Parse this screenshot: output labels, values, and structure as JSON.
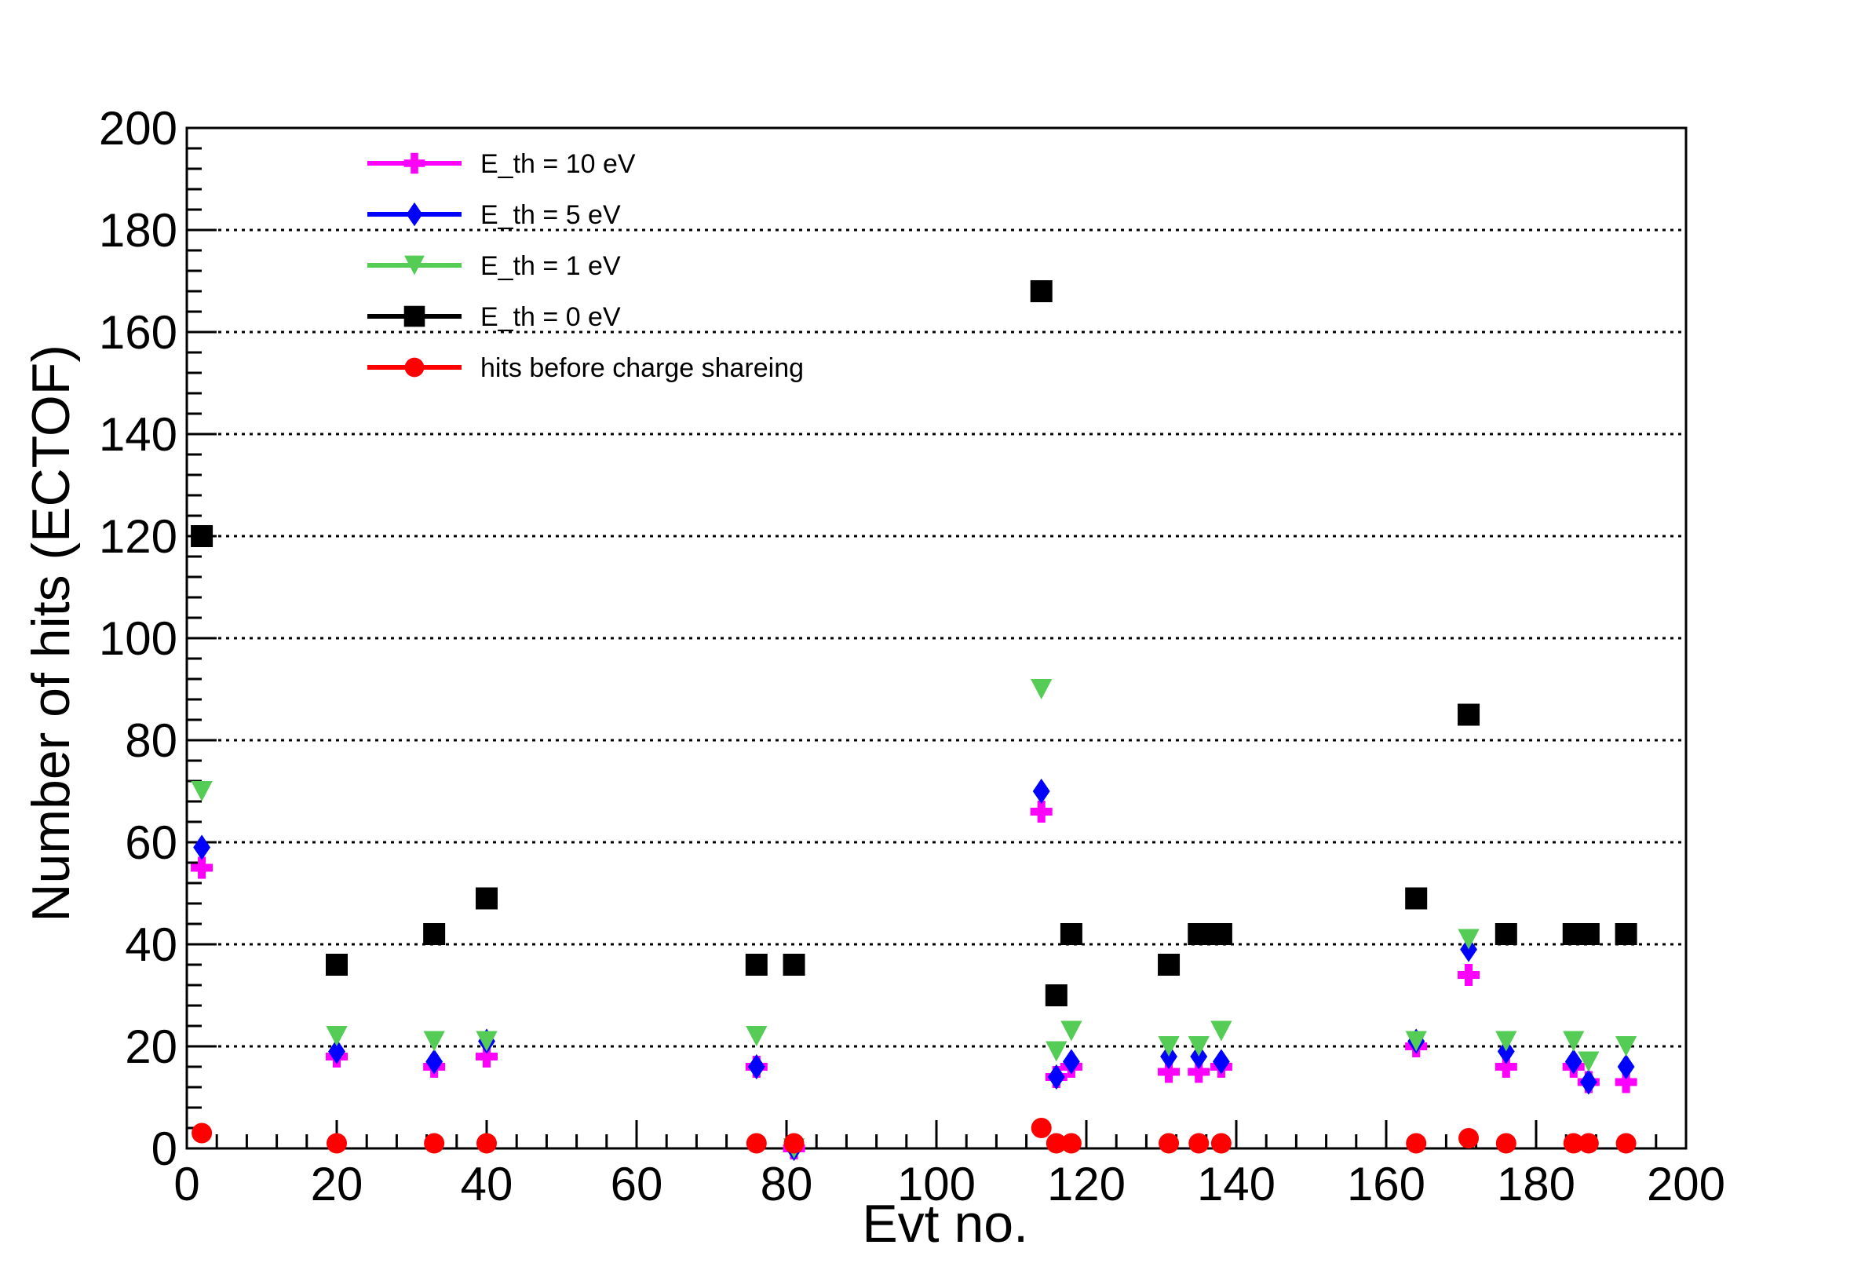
{
  "chart_data": {
    "type": "scatter",
    "title": "",
    "xlabel": "Evt no.",
    "ylabel": "Number of hits (ECTOF)",
    "xlim": [
      0,
      200
    ],
    "ylim": [
      0,
      200
    ],
    "xticks": [
      0,
      20,
      40,
      60,
      80,
      100,
      120,
      140,
      160,
      180,
      200
    ],
    "yticks": [
      0,
      20,
      40,
      60,
      80,
      100,
      120,
      140,
      160,
      180,
      200
    ],
    "ygrid": [
      20,
      40,
      60,
      80,
      100,
      120,
      140,
      160,
      180
    ],
    "grid": "horizontal dotted",
    "legend_position": "top-left",
    "series": [
      {
        "name": "E_th = 10 eV",
        "color": "#ff00ff",
        "marker": "cross",
        "points": [
          [
            2,
            55
          ],
          [
            20,
            18
          ],
          [
            33,
            16
          ],
          [
            40,
            18
          ],
          [
            76,
            16
          ],
          [
            81,
            0
          ],
          [
            114,
            66
          ],
          [
            116,
            14
          ],
          [
            118,
            16
          ],
          [
            131,
            15
          ],
          [
            135,
            15
          ],
          [
            138,
            16
          ],
          [
            164,
            20
          ],
          [
            171,
            34
          ],
          [
            176,
            16
          ],
          [
            185,
            16
          ],
          [
            187,
            13
          ],
          [
            192,
            13
          ]
        ]
      },
      {
        "name": "E_th = 5 eV",
        "color": "#0000ff",
        "marker": "diamond",
        "points": [
          [
            2,
            59
          ],
          [
            20,
            19
          ],
          [
            33,
            17
          ],
          [
            40,
            21
          ],
          [
            76,
            16
          ],
          [
            81,
            0
          ],
          [
            114,
            70
          ],
          [
            116,
            14
          ],
          [
            118,
            17
          ],
          [
            131,
            18
          ],
          [
            135,
            18
          ],
          [
            138,
            17
          ],
          [
            164,
            21
          ],
          [
            171,
            39
          ],
          [
            176,
            19
          ],
          [
            185,
            17
          ],
          [
            187,
            13
          ],
          [
            192,
            16
          ]
        ]
      },
      {
        "name": "E_th = 1 eV",
        "color": "#55cc55",
        "marker": "triangle-down",
        "points": [
          [
            2,
            70
          ],
          [
            20,
            22
          ],
          [
            33,
            21
          ],
          [
            40,
            21
          ],
          [
            76,
            22
          ],
          [
            81,
            0
          ],
          [
            114,
            90
          ],
          [
            116,
            19
          ],
          [
            118,
            23
          ],
          [
            131,
            20
          ],
          [
            135,
            20
          ],
          [
            138,
            23
          ],
          [
            164,
            21
          ],
          [
            171,
            41
          ],
          [
            176,
            21
          ],
          [
            185,
            21
          ],
          [
            187,
            17
          ],
          [
            192,
            20
          ]
        ]
      },
      {
        "name": "E_th = 0 eV",
        "color": "#000000",
        "marker": "square",
        "points": [
          [
            2,
            120
          ],
          [
            20,
            36
          ],
          [
            33,
            42
          ],
          [
            40,
            49
          ],
          [
            76,
            36
          ],
          [
            81,
            36
          ],
          [
            114,
            168
          ],
          [
            116,
            30
          ],
          [
            118,
            42
          ],
          [
            131,
            36
          ],
          [
            135,
            42
          ],
          [
            137,
            42
          ],
          [
            138,
            42
          ],
          [
            164,
            49
          ],
          [
            171,
            85
          ],
          [
            176,
            42
          ],
          [
            185,
            42
          ],
          [
            187,
            42
          ],
          [
            192,
            42
          ]
        ]
      },
      {
        "name": "hits before charge shareing",
        "color": "#ff0000",
        "marker": "circle",
        "points": [
          [
            2,
            3
          ],
          [
            20,
            1
          ],
          [
            33,
            1
          ],
          [
            40,
            1
          ],
          [
            76,
            1
          ],
          [
            81,
            1
          ],
          [
            114,
            4
          ],
          [
            116,
            1
          ],
          [
            118,
            1
          ],
          [
            131,
            1
          ],
          [
            135,
            1
          ],
          [
            138,
            1
          ],
          [
            164,
            1
          ],
          [
            171,
            2
          ],
          [
            176,
            1
          ],
          [
            185,
            1
          ],
          [
            187,
            1
          ],
          [
            192,
            1
          ]
        ]
      }
    ]
  }
}
